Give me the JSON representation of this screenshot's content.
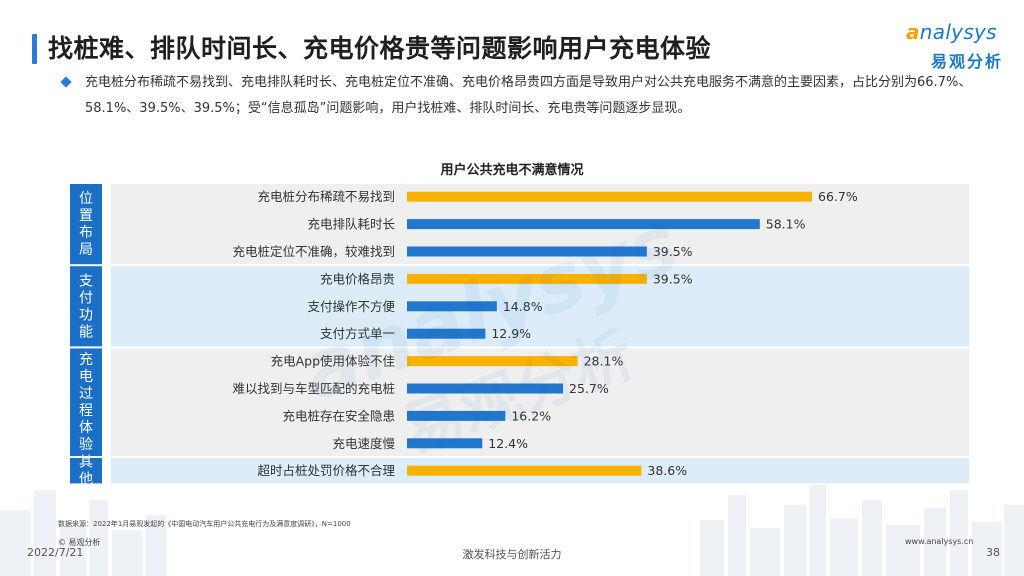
{
  "title": "找桩难、排队时间长、充电价格贵等问题影响用户充电体验",
  "logo": {
    "en_first": "a",
    "en_rest": "nalysys",
    "cn": "易观分析",
    "watermark_en": "analysys",
    "watermark_cn": "易观分析"
  },
  "description": "充电桩分布稀疏不易找到、充电排队耗时长、充电桩定位不准确、充电价格昂贵四方面是导致用户对公共充电服务不满意的主要因素，占比分别为66.7%、58.1%、39.5%、39.5%；受“信息孤岛”问题影响，用户找桩难、排队时间长、充电贵等问题逐步显现。",
  "colors": {
    "accent": "#2a7ad8",
    "orange": "#f9b200",
    "blue": "#2277cc",
    "group_light": "#dcecf8",
    "group_gray": "#efefef",
    "label_bg": "#1b6fc4"
  },
  "chart_data": {
    "type": "bar",
    "orientation": "horizontal",
    "title": "用户公共充电不满意情况",
    "value_unit": "%",
    "groups": [
      {
        "name": "位置布局",
        "categories": [
          {
            "label": "充电桩分布稀疏不易找到",
            "value": 66.7,
            "value_label": "66.7%",
            "color": "orange"
          },
          {
            "label": "充电排队耗时长",
            "value": 58.1,
            "value_label": "58.1%",
            "color": "blue"
          },
          {
            "label": "充电桩定位不准确，较难找到",
            "value": 39.5,
            "value_label": "39.5%",
            "color": "blue"
          }
        ]
      },
      {
        "name": "支付功能",
        "categories": [
          {
            "label": "充电价格昂贵",
            "value": 39.5,
            "value_label": "39.5%",
            "color": "orange"
          },
          {
            "label": "支付操作不方便",
            "value": 14.8,
            "value_label": "14.8%",
            "color": "blue"
          },
          {
            "label": "支付方式单一",
            "value": 12.9,
            "value_label": "12.9%",
            "color": "blue"
          }
        ]
      },
      {
        "name": "充电过程体验",
        "categories": [
          {
            "label": "充电App使用体验不佳",
            "value": 28.1,
            "value_label": "28.1%",
            "color": "orange"
          },
          {
            "label": "难以找到与车型匹配的充电桩",
            "value": 25.7,
            "value_label": "25.7%",
            "color": "blue"
          },
          {
            "label": "充电桩存在安全隐患",
            "value": 16.2,
            "value_label": "16.2%",
            "color": "blue"
          },
          {
            "label": "充电速度慢",
            "value": 12.4,
            "value_label": "12.4%",
            "color": "blue"
          }
        ]
      },
      {
        "name": "其他",
        "categories": [
          {
            "label": "超时占桩处罚价格不合理",
            "value": 38.6,
            "value_label": "38.6%",
            "color": "orange"
          }
        ]
      }
    ]
  },
  "footer": {
    "source": "数据来源：2022年1月易观发起的《中国电动汽车用户公共充电行为及满意度调研》，N=1000",
    "logo_text": "© 易观分析",
    "date": "2022/7/21",
    "slogan": "激发科技与创新活力",
    "url": "www.analysys.cn",
    "page": "38"
  }
}
